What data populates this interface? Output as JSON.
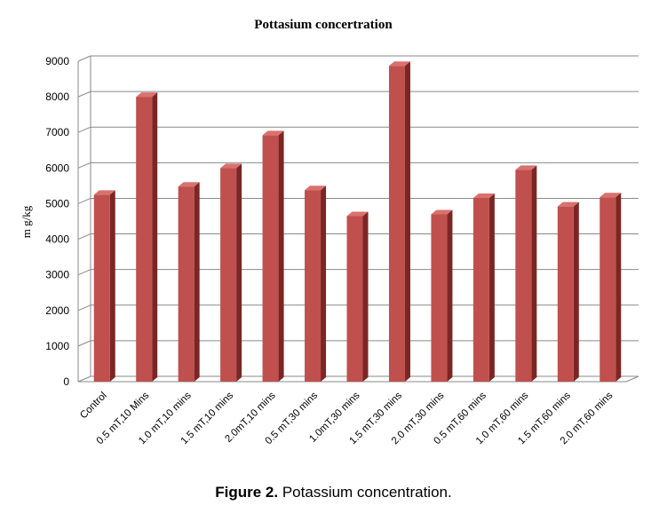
{
  "caption": {
    "label": "Figure 2.",
    "text": "Potassium concentration."
  },
  "chart_data": {
    "type": "bar",
    "title": "Pottasium concertration",
    "xlabel": "",
    "ylabel": "m g/kg",
    "ylim": [
      0,
      9000
    ],
    "yticks": [
      "0",
      "1000",
      "2000",
      "3000",
      "4000",
      "5000",
      "6000",
      "7000",
      "8000",
      "9000"
    ],
    "grid": true,
    "bar_color": "#c0504d",
    "categories": [
      "Control",
      "0.5 mT,10 Mins",
      "1.0 mT,10 mins",
      "1.5 mT,10 mins",
      "2.0mT,10 mins",
      "0.5 mT,30 mins",
      "1.0mT,30 mins",
      "1.5 mT,30 mins",
      "2.0 mT,30 mins",
      "0.5 mT,60 mins",
      "1.0 mT,60 mins",
      "1.5 mT,60 mins",
      "2.0 mT,60 mins"
    ],
    "values": [
      5250,
      8000,
      5480,
      6000,
      6920,
      5380,
      4650,
      8870,
      4700,
      5160,
      5950,
      4920,
      5180
    ]
  }
}
